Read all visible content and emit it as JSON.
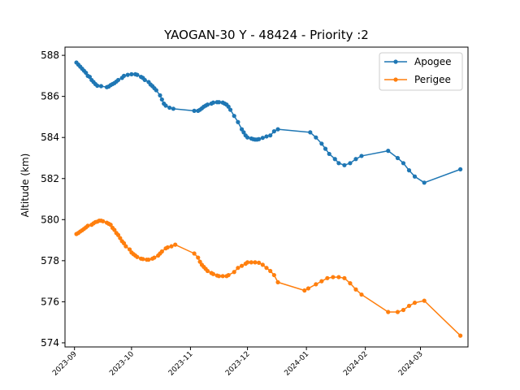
{
  "chart_data": {
    "type": "line",
    "title": "YAOGAN-30 Y - 48424 - Priority :2",
    "xlabel": "",
    "ylabel": "Altitude (km)",
    "ylim": [
      573.8,
      588.4
    ],
    "xlim": [
      "2023-08-27",
      "2024-03-26"
    ],
    "yticks": [
      574,
      576,
      578,
      580,
      582,
      584,
      586,
      588
    ],
    "xticks": [
      "2023-09",
      "2023-10",
      "2023-11",
      "2023-12",
      "2024-01",
      "2024-02",
      "2024-03"
    ],
    "grid": false,
    "legend_position": "top-right",
    "series": [
      {
        "name": "Apogee",
        "color": "#1f77b4",
        "points": [
          [
            "2023-09-02",
            587.65
          ],
          [
            "2023-09-03",
            587.55
          ],
          [
            "2023-09-04",
            587.45
          ],
          [
            "2023-09-05",
            587.35
          ],
          [
            "2023-09-06",
            587.25
          ],
          [
            "2023-09-07",
            587.15
          ],
          [
            "2023-09-08",
            587.0
          ],
          [
            "2023-09-09",
            586.95
          ],
          [
            "2023-09-10",
            586.8
          ],
          [
            "2023-09-11",
            586.7
          ],
          [
            "2023-09-12",
            586.6
          ],
          [
            "2023-09-13",
            586.52
          ],
          [
            "2023-09-15",
            586.5
          ],
          [
            "2023-09-18",
            586.45
          ],
          [
            "2023-09-19",
            586.48
          ],
          [
            "2023-09-20",
            586.55
          ],
          [
            "2023-09-21",
            586.6
          ],
          [
            "2023-09-22",
            586.65
          ],
          [
            "2023-09-23",
            586.72
          ],
          [
            "2023-09-24",
            586.8
          ],
          [
            "2023-09-26",
            586.9
          ],
          [
            "2023-09-27",
            587.0
          ],
          [
            "2023-09-29",
            587.05
          ],
          [
            "2023-10-01",
            587.08
          ],
          [
            "2023-10-03",
            587.08
          ],
          [
            "2023-10-04",
            587.05
          ],
          [
            "2023-10-06",
            586.95
          ],
          [
            "2023-10-07",
            586.9
          ],
          [
            "2023-10-08",
            586.8
          ],
          [
            "2023-10-10",
            586.7
          ],
          [
            "2023-10-11",
            586.58
          ],
          [
            "2023-10-12",
            586.5
          ],
          [
            "2023-10-13",
            586.4
          ],
          [
            "2023-10-14",
            586.3
          ],
          [
            "2023-10-16",
            586.05
          ],
          [
            "2023-10-17",
            585.85
          ],
          [
            "2023-10-18",
            585.65
          ],
          [
            "2023-10-19",
            585.55
          ],
          [
            "2023-10-21",
            585.45
          ],
          [
            "2023-10-23",
            585.4
          ],
          [
            "2023-11-03",
            585.3
          ],
          [
            "2023-11-05",
            585.3
          ],
          [
            "2023-11-06",
            585.35
          ],
          [
            "2023-11-07",
            585.42
          ],
          [
            "2023-11-08",
            585.5
          ],
          [
            "2023-11-09",
            585.55
          ],
          [
            "2023-11-10",
            585.6
          ],
          [
            "2023-11-12",
            585.65
          ],
          [
            "2023-11-13",
            585.7
          ],
          [
            "2023-11-15",
            585.72
          ],
          [
            "2023-11-16",
            585.72
          ],
          [
            "2023-11-18",
            585.7
          ],
          [
            "2023-11-19",
            585.65
          ],
          [
            "2023-11-20",
            585.6
          ],
          [
            "2023-11-21",
            585.5
          ],
          [
            "2023-11-22",
            585.35
          ],
          [
            "2023-11-24",
            585.05
          ],
          [
            "2023-11-26",
            584.75
          ],
          [
            "2023-11-28",
            584.4
          ],
          [
            "2023-11-29",
            584.25
          ],
          [
            "2023-11-30",
            584.1
          ],
          [
            "2023-12-01",
            584.0
          ],
          [
            "2023-12-03",
            583.95
          ],
          [
            "2023-12-04",
            583.92
          ],
          [
            "2023-12-05",
            583.9
          ],
          [
            "2023-12-06",
            583.9
          ],
          [
            "2023-12-07",
            583.92
          ],
          [
            "2023-12-09",
            583.98
          ],
          [
            "2023-12-11",
            584.05
          ],
          [
            "2023-12-13",
            584.1
          ],
          [
            "2023-12-15",
            584.3
          ],
          [
            "2023-12-17",
            584.4
          ],
          [
            "2024-01-03",
            584.25
          ],
          [
            "2024-01-06",
            584.0
          ],
          [
            "2024-01-09",
            583.7
          ],
          [
            "2024-01-11",
            583.45
          ],
          [
            "2024-01-13",
            583.2
          ],
          [
            "2024-01-16",
            582.95
          ],
          [
            "2024-01-18",
            582.75
          ],
          [
            "2024-01-21",
            582.65
          ],
          [
            "2024-01-24",
            582.75
          ],
          [
            "2024-01-27",
            582.95
          ],
          [
            "2024-01-30",
            583.1
          ],
          [
            "2024-02-13",
            583.35
          ],
          [
            "2024-02-18",
            583.0
          ],
          [
            "2024-02-21",
            582.75
          ],
          [
            "2024-02-24",
            582.4
          ],
          [
            "2024-02-27",
            582.1
          ],
          [
            "2024-03-03",
            581.8
          ],
          [
            "2024-03-22",
            582.45
          ]
        ]
      },
      {
        "name": "Perigee",
        "color": "#ff7f0e",
        "points": [
          [
            "2023-09-02",
            579.3
          ],
          [
            "2023-09-03",
            579.35
          ],
          [
            "2023-09-04",
            579.42
          ],
          [
            "2023-09-05",
            579.48
          ],
          [
            "2023-09-06",
            579.55
          ],
          [
            "2023-09-07",
            579.62
          ],
          [
            "2023-09-08",
            579.7
          ],
          [
            "2023-09-10",
            579.75
          ],
          [
            "2023-09-11",
            579.82
          ],
          [
            "2023-09-12",
            579.88
          ],
          [
            "2023-09-13",
            579.9
          ],
          [
            "2023-09-14",
            579.95
          ],
          [
            "2023-09-15",
            579.95
          ],
          [
            "2023-09-16",
            579.92
          ],
          [
            "2023-09-18",
            579.85
          ],
          [
            "2023-09-19",
            579.8
          ],
          [
            "2023-09-20",
            579.75
          ],
          [
            "2023-09-21",
            579.6
          ],
          [
            "2023-09-22",
            579.5
          ],
          [
            "2023-09-23",
            579.35
          ],
          [
            "2023-09-24",
            579.25
          ],
          [
            "2023-09-25",
            579.1
          ],
          [
            "2023-09-26",
            578.95
          ],
          [
            "2023-09-27",
            578.85
          ],
          [
            "2023-09-28",
            578.7
          ],
          [
            "2023-09-30",
            578.55
          ],
          [
            "2023-10-01",
            578.4
          ],
          [
            "2023-10-02",
            578.32
          ],
          [
            "2023-10-03",
            578.25
          ],
          [
            "2023-10-04",
            578.18
          ],
          [
            "2023-10-06",
            578.1
          ],
          [
            "2023-10-07",
            578.08
          ],
          [
            "2023-10-09",
            578.05
          ],
          [
            "2023-10-10",
            578.05
          ],
          [
            "2023-10-12",
            578.1
          ],
          [
            "2023-10-13",
            578.15
          ],
          [
            "2023-10-15",
            578.25
          ],
          [
            "2023-10-16",
            578.35
          ],
          [
            "2023-10-17",
            578.45
          ],
          [
            "2023-10-19",
            578.6
          ],
          [
            "2023-10-20",
            578.65
          ],
          [
            "2023-10-22",
            578.7
          ],
          [
            "2023-10-24",
            578.78
          ],
          [
            "2023-11-03",
            578.35
          ],
          [
            "2023-11-05",
            578.15
          ],
          [
            "2023-11-06",
            577.95
          ],
          [
            "2023-11-07",
            577.8
          ],
          [
            "2023-11-08",
            577.7
          ],
          [
            "2023-11-09",
            577.6
          ],
          [
            "2023-11-10",
            577.5
          ],
          [
            "2023-11-12",
            577.4
          ],
          [
            "2023-11-13",
            577.35
          ],
          [
            "2023-11-15",
            577.28
          ],
          [
            "2023-11-16",
            577.25
          ],
          [
            "2023-11-18",
            577.25
          ],
          [
            "2023-11-20",
            577.25
          ],
          [
            "2023-11-21",
            577.3
          ],
          [
            "2023-11-24",
            577.45
          ],
          [
            "2023-11-26",
            577.65
          ],
          [
            "2023-11-28",
            577.75
          ],
          [
            "2023-11-30",
            577.85
          ],
          [
            "2023-12-01",
            577.92
          ],
          [
            "2023-12-03",
            577.92
          ],
          [
            "2023-12-05",
            577.92
          ],
          [
            "2023-12-07",
            577.9
          ],
          [
            "2023-12-09",
            577.8
          ],
          [
            "2023-12-11",
            577.65
          ],
          [
            "2023-12-13",
            577.5
          ],
          [
            "2023-12-15",
            577.3
          ],
          [
            "2023-12-17",
            576.95
          ],
          [
            "2023-12-31",
            576.55
          ],
          [
            "2024-01-02",
            576.65
          ],
          [
            "2024-01-06",
            576.85
          ],
          [
            "2024-01-09",
            577.0
          ],
          [
            "2024-01-12",
            577.15
          ],
          [
            "2024-01-15",
            577.2
          ],
          [
            "2024-01-18",
            577.2
          ],
          [
            "2024-01-21",
            577.15
          ],
          [
            "2024-01-24",
            576.9
          ],
          [
            "2024-01-27",
            576.6
          ],
          [
            "2024-01-30",
            576.35
          ],
          [
            "2024-02-13",
            575.5
          ],
          [
            "2024-02-18",
            575.5
          ],
          [
            "2024-02-21",
            575.6
          ],
          [
            "2024-02-24",
            575.8
          ],
          [
            "2024-02-27",
            575.95
          ],
          [
            "2024-03-03",
            576.05
          ],
          [
            "2024-03-22",
            574.35
          ]
        ]
      }
    ]
  }
}
